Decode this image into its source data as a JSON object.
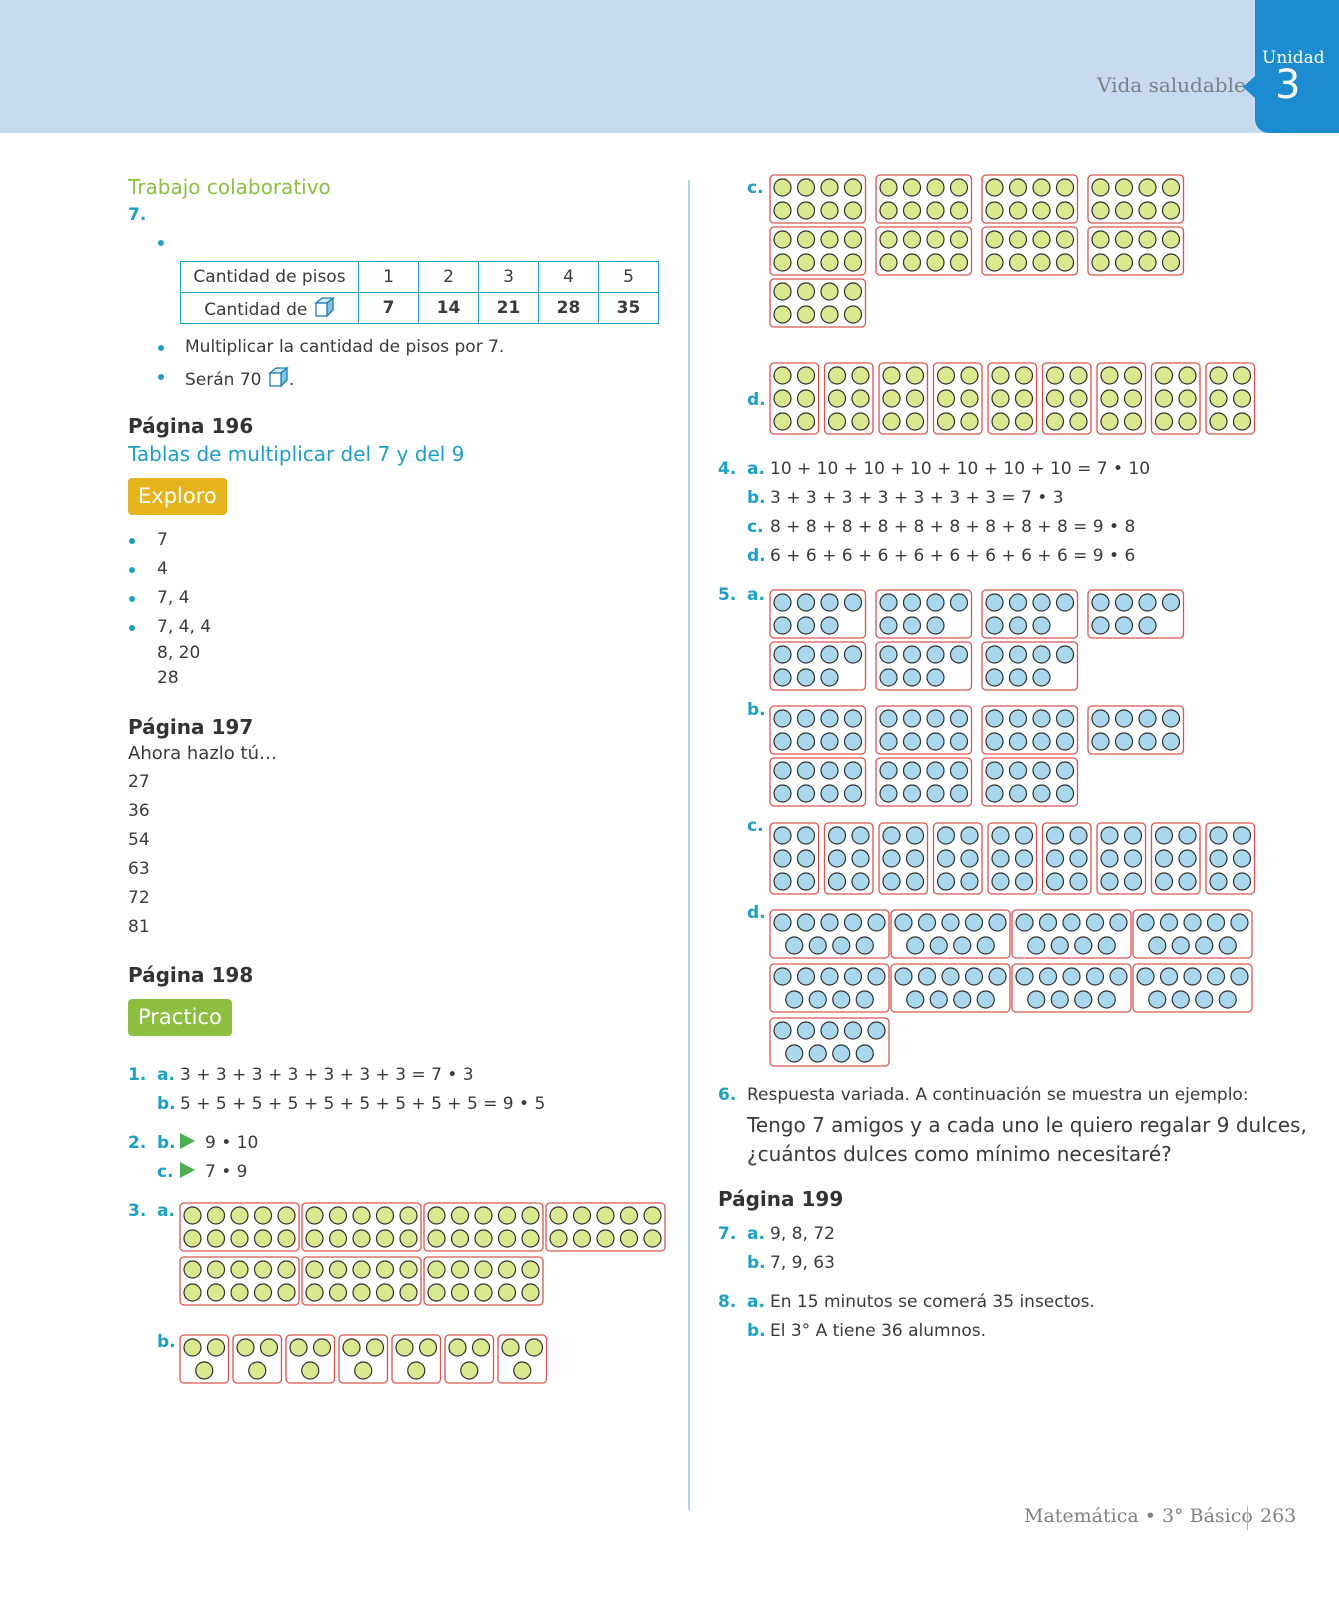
{
  "header": {
    "section": "Vida saludable",
    "unit_label": "Unidad",
    "unit_number": "3"
  },
  "left": {
    "colab_title": "Trabajo colaborativo",
    "item7": "7.",
    "table": {
      "row1_label": "Cantidad de pisos",
      "row1_values": [
        "1",
        "2",
        "3",
        "4",
        "5"
      ],
      "row2_label": "Cantidad de",
      "row2_values": [
        "7",
        "14",
        "21",
        "28",
        "35"
      ]
    },
    "bullets7": [
      "Multiplicar la cantidad de pisos por 7.",
      "Serán 70"
    ],
    "p196": "Página 196",
    "p196_sub": "Tablas de multiplicar del 7 y del 9",
    "exploro": "Exploro",
    "exploro_items": [
      "7",
      "4",
      "7, 4",
      "7, 4, 4"
    ],
    "exploro_extra": [
      "8, 20",
      "28"
    ],
    "p197": "Página 197",
    "p197_sub": "Ahora hazlo tú…",
    "p197_values": [
      "27",
      "36",
      "54",
      "63",
      "72",
      "81"
    ],
    "p198": "Página 198",
    "practico": "Practico",
    "q1_num": "1.",
    "q1a_label": "a.",
    "q1a": "3 + 3 + 3 + 3 + 3 + 3 + 3 = 7 • 3",
    "q1b_label": "b.",
    "q1b": "5 + 5 + 5 + 5 + 5 + 5 + 5 + 5 + 5 = 9 • 5",
    "q2_num": "2.",
    "q2b_label": "b.",
    "q2b": "9 • 10",
    "q2c_label": "c.",
    "q2c": "7 • 9",
    "q3_num": "3.",
    "q3a_label": "a.",
    "q3b_label": "b."
  },
  "right": {
    "q3c_label": "c.",
    "q3d_label": "d.",
    "q4_num": "4.",
    "q4": [
      {
        "label": "a.",
        "text": "10 + 10 + 10 + 10 + 10 + 10 + 10 = 7 • 10"
      },
      {
        "label": "b.",
        "text": "3 + 3 + 3 + 3 + 3 + 3 + 3 = 7 • 3"
      },
      {
        "label": "c.",
        "text": "8 + 8 + 8 + 8 + 8 + 8 + 8 + 8 + 8 = 9 • 8"
      },
      {
        "label": "d.",
        "text": "6 + 6 + 6 + 6 + 6 + 6 + 6 + 6 + 6 = 9 • 6"
      }
    ],
    "q5_num": "5.",
    "q5a_label": "a.",
    "q5b_label": "b.",
    "q5c_label": "c.",
    "q5d_label": "d.",
    "q6_num": "6.",
    "q6_intro": "Respuesta variada. A continuación se muestra un ejemplo:",
    "q6_line1": "Tengo 7 amigos y a cada uno le quiero regalar 9 dulces,",
    "q6_line2": "¿cuántos dulces como mínimo necesitaré?",
    "p199": "Página 199",
    "q7_num": "7.",
    "q7a_label": "a.",
    "q7a": "9, 8, 72",
    "q7b_label": "b.",
    "q7b": "7, 9, 63",
    "q8_num": "8.",
    "q8a_label": "a.",
    "q8a": "En 15 minutos se comerá 35 insectos.",
    "q8b_label": "b.",
    "q8b": "El 3° A tiene 36 alumnos."
  },
  "footer": {
    "subject": "Matemática • 3° Básico",
    "page": "263"
  },
  "colors": {
    "green_circle": "#dbe98e",
    "blue_circle": "#a9d8ee",
    "box_border": "#d9534f",
    "accent_blue": "#1a9fc7",
    "accent_green": "#8cbf3f",
    "exploro_yellow": "#e5b31b"
  }
}
